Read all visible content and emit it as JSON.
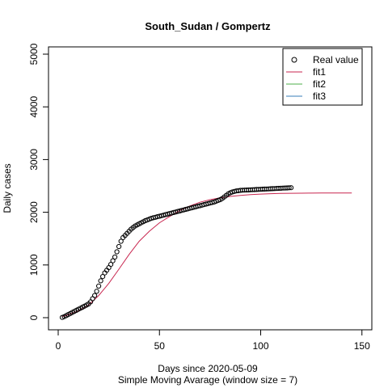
{
  "chart_data": {
    "type": "scatter",
    "title": "South_Sudan / Gompertz",
    "xlabel": "Days since 2020-05-09",
    "subtitle": "Simple Moving Avarage (window size = 7)",
    "ylabel": "Daily cases",
    "xlim": [
      0,
      150
    ],
    "ylim": [
      0,
      5000
    ],
    "x_ticks": [
      "0",
      "50",
      "100",
      "150"
    ],
    "y_ticks": [
      "0",
      "1000",
      "2000",
      "3000",
      "4000",
      "5000"
    ],
    "grid": false,
    "legend_position": "top-right",
    "legend": [
      {
        "label": "Real value",
        "kind": "point",
        "color": "#000000"
      },
      {
        "label": "fit1",
        "kind": "line",
        "color": "#C8264F"
      },
      {
        "label": "fit2",
        "kind": "line",
        "color": "#4DAF4A"
      },
      {
        "label": "fit3",
        "kind": "line",
        "color": "#377EB8"
      }
    ],
    "series": [
      {
        "name": "Real value",
        "kind": "points",
        "color": "#000000",
        "x": [
          2,
          3,
          4,
          5,
          6,
          7,
          8,
          9,
          10,
          11,
          12,
          13,
          14,
          15,
          16,
          17,
          18,
          19,
          20,
          21,
          22,
          23,
          24,
          25,
          26,
          27,
          28,
          29,
          30,
          31,
          32,
          33,
          34,
          35,
          36,
          37,
          38,
          39,
          40,
          41,
          42,
          43,
          44,
          45,
          46,
          47,
          48,
          49,
          50,
          51,
          52,
          53,
          54,
          55,
          56,
          57,
          58,
          59,
          60,
          61,
          62,
          63,
          64,
          65,
          66,
          67,
          68,
          69,
          70,
          71,
          72,
          73,
          74,
          75,
          76,
          77,
          78,
          79,
          80,
          81,
          82,
          83,
          84,
          85,
          86,
          87,
          88,
          89,
          90,
          91,
          92,
          93,
          94,
          95,
          96,
          97,
          98,
          99,
          100,
          101,
          102,
          103,
          104,
          105,
          106,
          107,
          108,
          109,
          110,
          111,
          112,
          113,
          114,
          115
        ],
        "y": [
          5,
          20,
          40,
          60,
          80,
          100,
          120,
          140,
          160,
          180,
          200,
          220,
          240,
          260,
          300,
          360,
          420,
          500,
          600,
          700,
          780,
          850,
          900,
          950,
          1010,
          1080,
          1150,
          1250,
          1350,
          1450,
          1520,
          1560,
          1600,
          1640,
          1680,
          1710,
          1740,
          1760,
          1780,
          1800,
          1820,
          1840,
          1855,
          1870,
          1885,
          1895,
          1905,
          1915,
          1925,
          1935,
          1945,
          1955,
          1965,
          1975,
          1985,
          1995,
          2005,
          2015,
          2025,
          2035,
          2045,
          2055,
          2065,
          2075,
          2085,
          2095,
          2105,
          2115,
          2125,
          2135,
          2145,
          2155,
          2165,
          2175,
          2185,
          2195,
          2210,
          2225,
          2240,
          2260,
          2290,
          2320,
          2350,
          2370,
          2385,
          2395,
          2405,
          2410,
          2415,
          2418,
          2420,
          2422,
          2424,
          2426,
          2428,
          2430,
          2432,
          2434,
          2436,
          2438,
          2440,
          2442,
          2444,
          2446,
          2448,
          2450,
          2452,
          2454,
          2456,
          2458,
          2460,
          2462,
          2464,
          2466
        ]
      },
      {
        "name": "fit1",
        "kind": "line",
        "color": "#C8264F",
        "x": [
          2,
          5,
          10,
          15,
          20,
          25,
          30,
          35,
          40,
          45,
          50,
          55,
          60,
          65,
          70,
          75,
          80,
          85,
          90,
          95,
          100,
          105,
          110,
          115,
          120,
          125,
          130,
          135,
          140,
          145
        ],
        "y": [
          20,
          55,
          130,
          240,
          420,
          650,
          920,
          1200,
          1450,
          1640,
          1800,
          1920,
          2030,
          2120,
          2190,
          2240,
          2275,
          2300,
          2320,
          2335,
          2345,
          2352,
          2357,
          2360,
          2362,
          2364,
          2365,
          2366,
          2366,
          2367
        ]
      },
      {
        "name": "fit2",
        "kind": "line",
        "color": "#4DAF4A",
        "x": [],
        "y": []
      },
      {
        "name": "fit3",
        "kind": "line",
        "color": "#377EB8",
        "x": [],
        "y": []
      }
    ]
  }
}
